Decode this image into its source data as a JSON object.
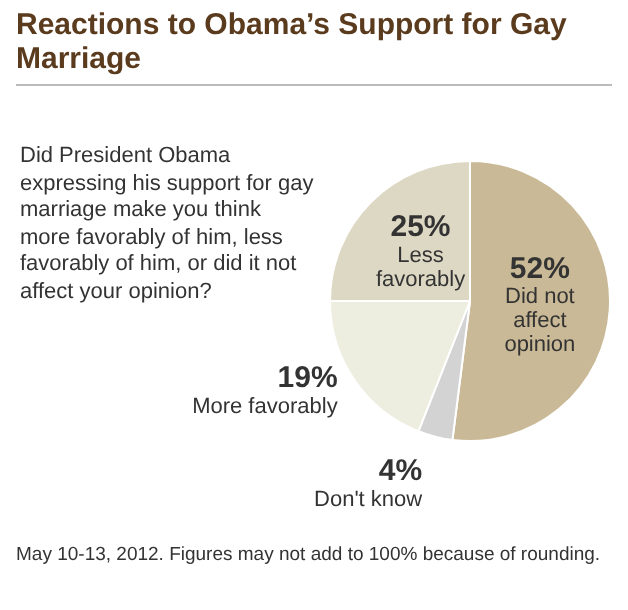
{
  "chart_data": {
    "type": "pie",
    "title": "Reactions to Obama’s Support for Gay Marriage",
    "categories": [
      "Did not affect opinion",
      "Don't know",
      "More favorably",
      "Less favorably"
    ],
    "values": [
      52,
      4,
      19,
      25
    ],
    "value_labels": [
      "52%",
      "4%",
      "19%",
      "25%"
    ],
    "colors": [
      "#c9b996",
      "#d3d3d3",
      "#eeeee0",
      "#ddd8c3"
    ],
    "annotations": [
      "Did President Obama expressing his support for gay marriage make you think more favorably of him, less favorably of him, or did it not affect your opinion?",
      "May 10-13, 2012. Figures may not add to 100% because of rounding."
    ],
    "legend": false
  }
}
